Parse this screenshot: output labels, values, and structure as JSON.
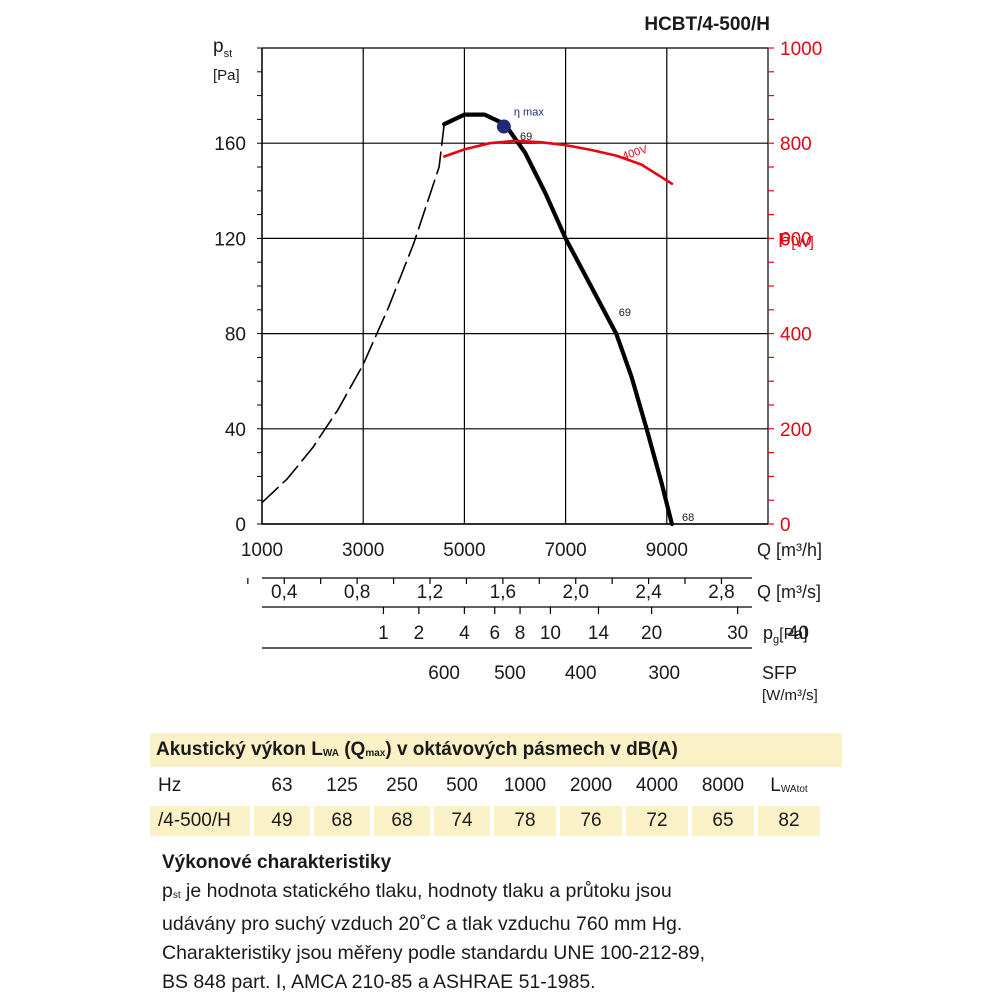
{
  "chart_data": {
    "type": "line",
    "title": "HCBT/4-500/H",
    "x": {
      "label": "Q [m³/h]",
      "range": [
        1000,
        11000
      ],
      "ticks": [
        1000,
        3000,
        5000,
        7000,
        9000
      ],
      "grid": true
    },
    "y_left": {
      "label_main": "p",
      "label_sub": "st",
      "unit": "[Pa]",
      "range": [
        0,
        200
      ],
      "ticks": [
        0,
        40,
        80,
        120,
        160
      ],
      "grid": true
    },
    "y_right": {
      "label_main": "P",
      "unit": "[W]",
      "range": [
        0,
        1000
      ],
      "ticks": [
        0,
        200,
        400,
        600,
        800,
        1000
      ],
      "color": "#e30613"
    },
    "series": [
      {
        "style": "dashed",
        "color": "#000000",
        "axis": "left",
        "x": [
          1000,
          1500,
          2000,
          2500,
          3000,
          3500,
          4000,
          4500,
          4600
        ],
        "y": [
          9,
          19,
          32,
          48,
          67,
          91,
          118,
          150,
          168
        ]
      },
      {
        "style": "solid",
        "color": "#000000",
        "axis": "left",
        "x": [
          4600,
          5000,
          5400,
          5800,
          6200,
          6600,
          7000,
          7500,
          8000,
          8300,
          8600,
          8900,
          9100
        ],
        "y": [
          168,
          172,
          172,
          168,
          156,
          139,
          120,
          100,
          80,
          62,
          40,
          17,
          0
        ]
      },
      {
        "style": "solid",
        "color": "#e30613",
        "axis": "right",
        "x": [
          4600,
          5000,
          5500,
          6000,
          6500,
          7000,
          7500,
          8000,
          8500,
          9100
        ],
        "y": [
          772,
          787,
          800,
          805,
          802,
          796,
          786,
          774,
          755,
          715
        ]
      }
    ],
    "eta_max": {
      "x": 5780,
      "y": 167,
      "label": "η max",
      "color": "#1e2a78"
    },
    "point_labels": [
      {
        "text": "69",
        "x": 6100,
        "y": 163
      },
      {
        "text": "69",
        "x": 8050,
        "y": 89
      },
      {
        "text": "68",
        "x": 9300,
        "y": 3
      }
    ],
    "series_label": {
      "text": "400V",
      "x": 8150,
      "y": 765
    },
    "secondary_scales": [
      {
        "unit": "Q [m³/s]",
        "ticks": [
          {
            "v": 0.4,
            "t": "0,4"
          },
          {
            "v": 0.8,
            "t": "0,8"
          },
          {
            "v": 1.2,
            "t": "1,2"
          },
          {
            "v": 1.6,
            "t": "1,6"
          },
          {
            "v": 2.0,
            "t": "2,0"
          },
          {
            "v": 2.4,
            "t": "2,4"
          },
          {
            "v": 2.8,
            "t": "2,8"
          }
        ]
      },
      {
        "unit_main": "p",
        "unit_sub": "g",
        "unit_rest": "[Pa]",
        "ticks": [
          {
            "q": 3400,
            "t": "1"
          },
          {
            "q": 4100,
            "t": "2"
          },
          {
            "q": 5000,
            "t": "4"
          },
          {
            "q": 5600,
            "t": "6"
          },
          {
            "q": 6100,
            "t": "8"
          },
          {
            "q": 6700,
            "t": "10"
          },
          {
            "q": 7650,
            "t": "14"
          },
          {
            "q": 8700,
            "t": "20"
          },
          {
            "q": 10400,
            "t": "30"
          },
          {
            "q": 11600,
            "t": "40"
          }
        ]
      },
      {
        "unit_line1": "SFP",
        "unit_line2": "[W/m³/s]",
        "ticks": [
          {
            "q": 4600,
            "t": "600"
          },
          {
            "q": 5900,
            "t": "500"
          },
          {
            "q": 7300,
            "t": "400"
          },
          {
            "q": 8950,
            "t": "300"
          }
        ]
      }
    ]
  },
  "acoustic": {
    "title_main": "Akustický výkon L",
    "title_sub1": "WA",
    "title_mid": " (Q",
    "title_sub2": "max",
    "title_end": ") v oktávových pásmech v dB(A)",
    "hz_label": "Hz",
    "bands": [
      "63",
      "125",
      "250",
      "500",
      "1000",
      "2000",
      "4000",
      "8000"
    ],
    "total_main": "L",
    "total_sub": "WAtot",
    "row_label": "/4-500/H",
    "values": [
      "49",
      "68",
      "68",
      "74",
      "78",
      "76",
      "72",
      "65"
    ],
    "total_value": "82"
  },
  "description": {
    "title": "Výkonové charakteristiky",
    "line1_main": "p",
    "line1_sub": "st",
    "line1_rest": " je hodnota statického tlaku, hodnoty tlaku a průtoku jsou",
    "line2": "udávány pro suchý vzduch 20˚C a tlak vzduchu 760 mm Hg.",
    "line3": "Charakteristiky jsou měřeny podle standardu UNE 100-212-89,",
    "line4": "BS 848 part. I, AMCA 210-85 a ASHRAE 51-1985."
  }
}
